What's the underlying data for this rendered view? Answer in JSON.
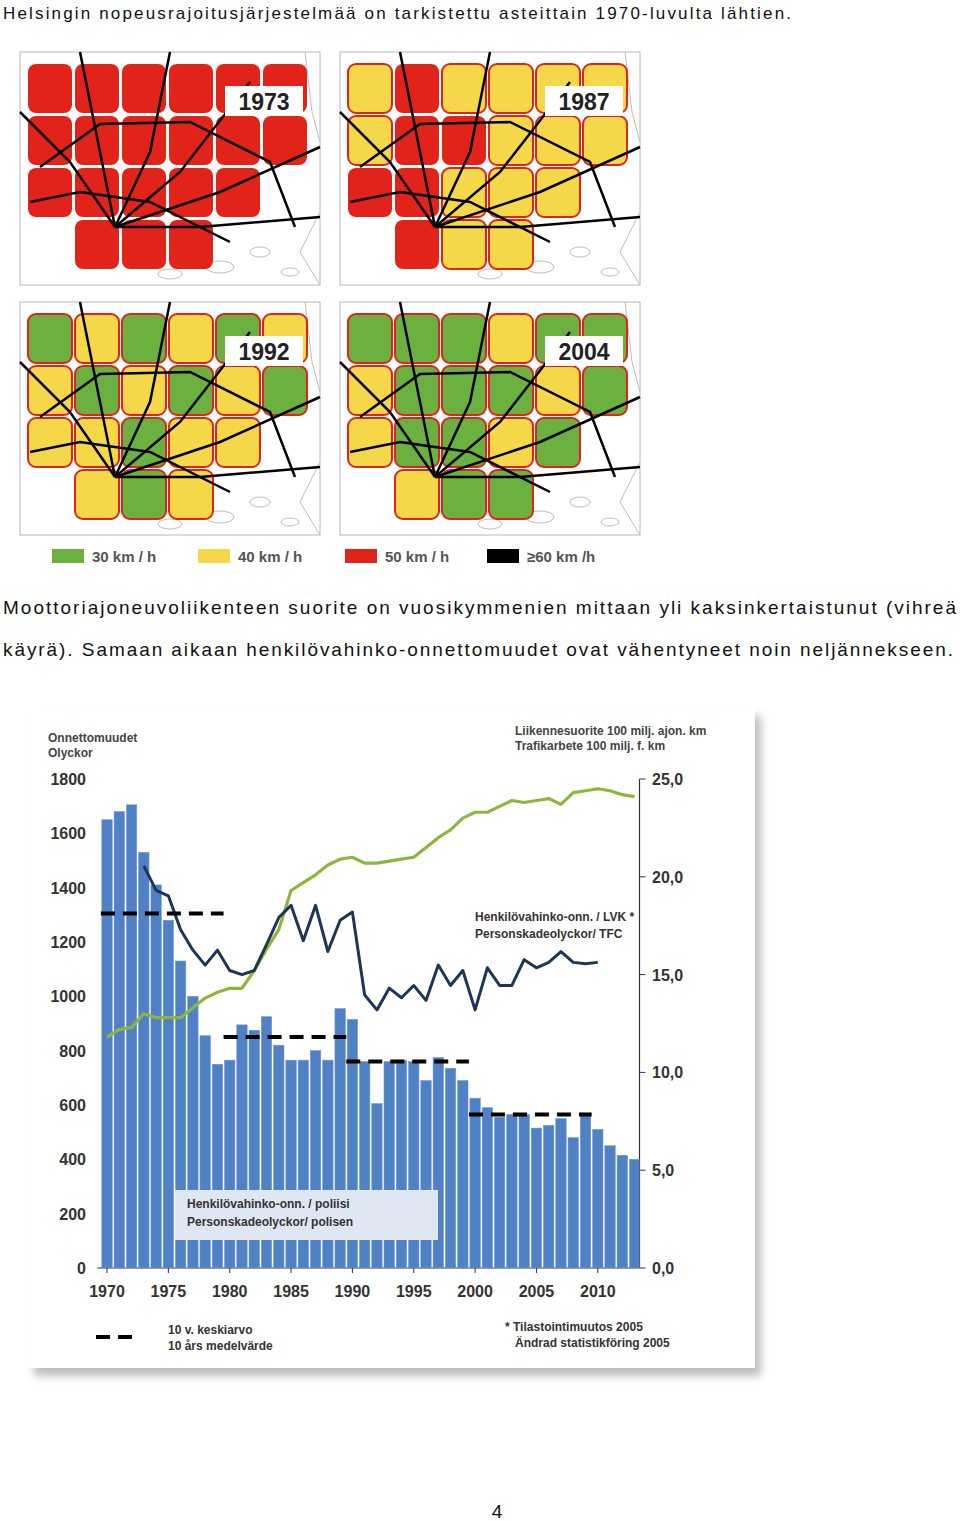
{
  "page": {
    "heading": "Helsingin nopeusrajoitusjärjestelmää on tarkistettu asteittain 1970-luvulta lähtien.",
    "paragraph": [
      "Moottoriajoneuvoliikenteen suorite on vuosikymmenien mittaan yli kaksinkertaistunut (vihreä",
      "käyrä). Samaan aikaan henkilövahinko-onnettomuudet ovat vähentyneet noin neljännekseen."
    ],
    "page_number": "4"
  },
  "maps": {
    "items": [
      {
        "year": "1973",
        "districts": [
          50,
          50,
          50,
          50,
          50,
          50,
          50,
          50,
          50,
          50,
          50,
          50,
          50,
          50,
          50,
          50,
          50,
          null,
          null,
          50,
          50,
          50,
          null,
          null
        ]
      },
      {
        "year": "1987",
        "districts": [
          40,
          50,
          40,
          40,
          40,
          40,
          40,
          50,
          50,
          40,
          40,
          40,
          50,
          50,
          40,
          40,
          40,
          null,
          null,
          50,
          40,
          40,
          null,
          null
        ]
      },
      {
        "year": "1992",
        "districts": [
          30,
          40,
          30,
          40,
          30,
          40,
          40,
          30,
          40,
          30,
          40,
          30,
          40,
          40,
          30,
          40,
          40,
          null,
          null,
          40,
          30,
          40,
          null,
          null
        ]
      },
      {
        "year": "2004",
        "districts": [
          30,
          30,
          30,
          40,
          30,
          30,
          40,
          30,
          30,
          30,
          40,
          30,
          40,
          30,
          30,
          40,
          30,
          null,
          null,
          40,
          30,
          30,
          null,
          null
        ]
      }
    ],
    "legend": [
      {
        "label": "30 km / h",
        "speed": 30,
        "color": "#6ab13f"
      },
      {
        "label": "40 km / h",
        "speed": 40,
        "color": "#f4d84a"
      },
      {
        "label": "50 km / h",
        "speed": 50,
        "color": "#e2231a"
      },
      {
        "label": "≥60 km /h",
        "speed": 60,
        "color": "#000000"
      }
    ]
  },
  "chart_data": {
    "type": "bar",
    "ylabel": [
      "Onnettomuudet",
      "Olyckor"
    ],
    "y2label": [
      "Liikennesuorite 100 milj. ajon. km",
      "Trafikarbete 100 milj. f. km"
    ],
    "note": [
      "* Tilastointimuutos 2005",
      "Ändrad statistikföring 2005"
    ],
    "average_legend": [
      "10 v. keskiarvo",
      "10 års medelvärde"
    ],
    "grid": false,
    "x": [
      1970,
      1971,
      1972,
      1973,
      1974,
      1975,
      1976,
      1977,
      1978,
      1979,
      1980,
      1981,
      1982,
      1983,
      1984,
      1985,
      1986,
      1987,
      1988,
      1989,
      1990,
      1991,
      1992,
      1993,
      1994,
      1995,
      1996,
      1997,
      1998,
      1999,
      2000,
      2001,
      2002,
      2003,
      2004,
      2005,
      2006,
      2007,
      2008,
      2009,
      2010,
      2011,
      2012,
      2013
    ],
    "xlim": [
      1969.2,
      2013.4
    ],
    "xticks": [
      1970,
      1975,
      1980,
      1985,
      1990,
      1995,
      2000,
      2005,
      2010
    ],
    "ylim": [
      0,
      1800
    ],
    "yticks": [
      0,
      200,
      400,
      600,
      800,
      1000,
      1200,
      1400,
      1600,
      1800
    ],
    "y2lim": [
      0,
      25
    ],
    "y2ticks": [
      {
        "value": 0,
        "label": "0,0"
      },
      {
        "value": 5,
        "label": "5,0"
      },
      {
        "value": 10,
        "label": "10,0"
      },
      {
        "value": 15,
        "label": "15,0"
      },
      {
        "value": 20,
        "label": "20,0"
      },
      {
        "value": 25,
        "label": "25,0"
      }
    ],
    "series": [
      {
        "name": "Henkilövahinko-onn. / poliisi",
        "name_sv": "Personskadeolyckor/ polisen",
        "type": "bar",
        "color": "#4f81c4",
        "values": [
          1650,
          1680,
          1705,
          1530,
          1410,
          1280,
          1130,
          1000,
          855,
          750,
          765,
          895,
          875,
          925,
          820,
          765,
          765,
          800,
          765,
          955,
          915,
          760,
          605,
          760,
          765,
          760,
          690,
          775,
          735,
          690,
          625,
          590,
          555,
          565,
          565,
          515,
          525,
          550,
          480,
          570,
          510,
          450,
          415,
          400
        ]
      },
      {
        "type": "line",
        "axis": "y2",
        "color": "#8fb63c",
        "values": [
          11.8,
          12.2,
          12.3,
          13,
          12.8,
          12.8,
          12.8,
          13.3,
          13.8,
          14.1,
          14.3,
          14.3,
          15.2,
          16.3,
          17.3,
          19.3,
          19.7,
          20.1,
          20.6,
          20.9,
          21,
          20.7,
          20.7,
          20.8,
          20.9,
          21,
          21.5,
          22,
          22.4,
          23,
          23.3,
          23.3,
          23.6,
          23.9,
          23.8,
          23.9,
          24,
          23.7,
          24.3,
          24.4,
          24.5,
          24.4,
          24.2,
          24.1
        ]
      },
      {
        "name": "Henkilövahinko-onn. / LVK *",
        "name_sv": "Personskadeolyckor/ TFC",
        "type": "line",
        "color": "#1d3557",
        "values": [
          null,
          null,
          null,
          1480,
          1390,
          1370,
          1245,
          1170,
          1115,
          1170,
          1095,
          1080,
          1095,
          1190,
          1290,
          1335,
          1205,
          1335,
          1165,
          1280,
          1310,
          1005,
          950,
          1030,
          995,
          1040,
          985,
          1115,
          1040,
          1095,
          950,
          1105,
          1040,
          1040,
          1135,
          1105,
          1125,
          1165,
          1125,
          1120,
          1125,
          null,
          null,
          null
        ]
      }
    ],
    "ten_year_averages": {
      "color": "#000000",
      "line_style": "dashed",
      "items": [
        {
          "start": 1970,
          "end": 1979,
          "value": 1305
        },
        {
          "start": 1980,
          "end": 1989,
          "value": 850
        },
        {
          "start": 1990,
          "end": 1999,
          "value": 760
        },
        {
          "start": 2000,
          "end": 2009,
          "value": 565
        }
      ]
    }
  }
}
